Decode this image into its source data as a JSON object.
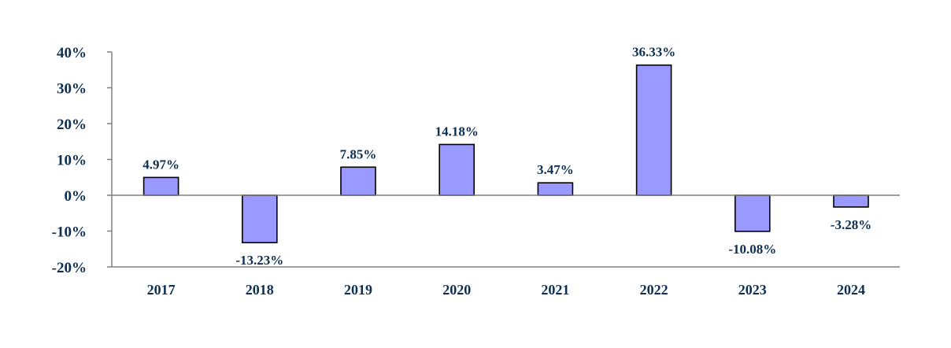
{
  "chart_data": {
    "type": "bar",
    "title": "",
    "xlabel": "",
    "ylabel": "",
    "categories": [
      "2017",
      "2018",
      "2019",
      "2020",
      "2021",
      "2022",
      "2023",
      "2024"
    ],
    "values": [
      4.97,
      -13.23,
      7.85,
      14.18,
      3.47,
      36.33,
      -10.08,
      -3.28
    ],
    "data_labels": [
      "4.97%",
      "-13.23%",
      "7.85%",
      "14.18%",
      "3.47%",
      "36.33%",
      "-10.08%",
      "-3.28%"
    ],
    "ylim": [
      -20,
      40
    ],
    "yticks": [
      40,
      30,
      20,
      10,
      0,
      -10,
      -20
    ],
    "ytick_labels": [
      "40%",
      "30%",
      "20%",
      "10%",
      "0%",
      "-10%",
      "-20%"
    ],
    "grid": false,
    "legend": "none",
    "colors": {
      "bar_fill": "#9999ff",
      "bar_stroke": "#000000",
      "axis": "#808080",
      "text": "#0d2f52"
    }
  }
}
